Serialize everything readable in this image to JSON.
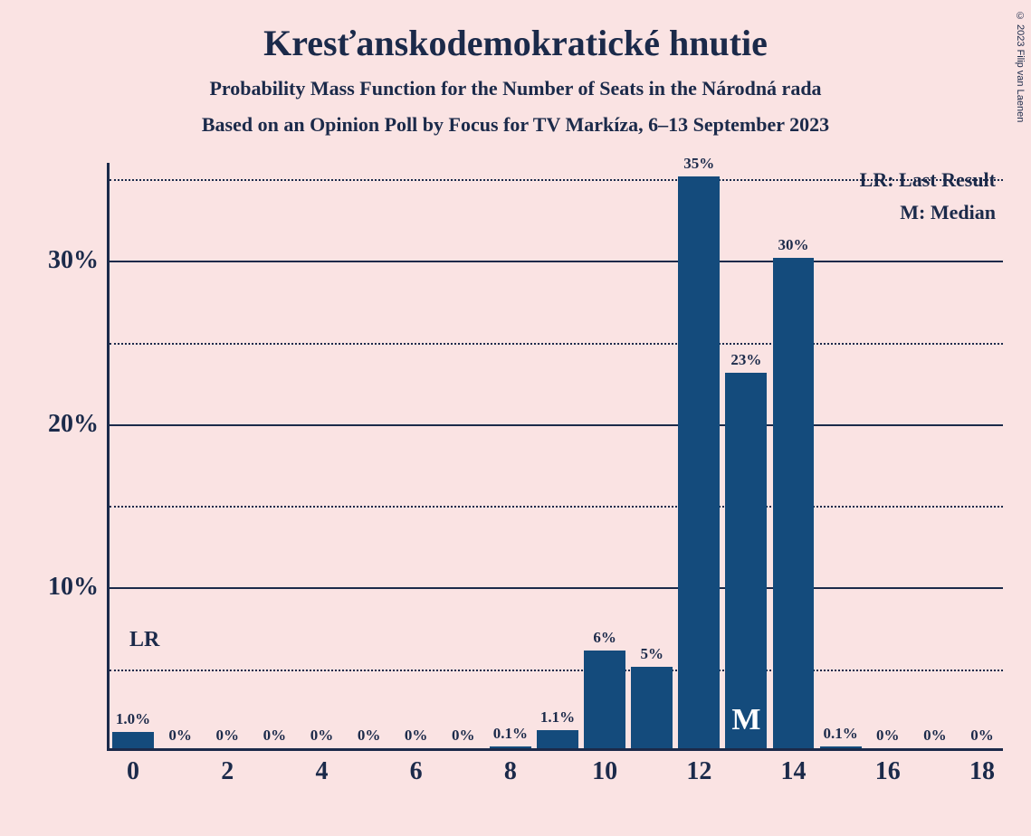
{
  "copyright": "© 2023 Filip van Laenen",
  "title": "Kresťanskodemokratické hnutie",
  "subtitle1": "Probability Mass Function for the Number of Seats in the Národná rada",
  "subtitle2": "Based on an Opinion Poll by Focus for TV Markíza, 6–13 September 2023",
  "legend": {
    "lr": "LR: Last Result",
    "m": "M: Median"
  },
  "lr_marker": "LR",
  "median_marker": "M",
  "chart": {
    "type": "bar",
    "background_color": "#fae3e3",
    "bar_color": "#144b7c",
    "text_color": "#1b2a4a",
    "border_color": "#1b2a4a",
    "grid_dotted_color": "#1b2a4a",
    "ylim": [
      0,
      36
    ],
    "y_major_ticks": [
      10,
      20,
      30
    ],
    "y_minor_ticks": [
      5,
      15,
      25,
      35
    ],
    "x_categories": [
      0,
      1,
      2,
      3,
      4,
      5,
      6,
      7,
      8,
      9,
      10,
      11,
      12,
      13,
      14,
      15,
      16,
      17,
      18
    ],
    "x_visible_ticks": [
      0,
      2,
      4,
      6,
      8,
      10,
      12,
      14,
      16,
      18
    ],
    "bar_width_ratio": 0.88,
    "values": [
      1.0,
      0,
      0,
      0,
      0,
      0,
      0,
      0,
      0.1,
      1.1,
      6,
      5,
      35,
      23,
      30,
      0.1,
      0,
      0,
      0
    ],
    "labels": [
      "1.0%",
      "0%",
      "0%",
      "0%",
      "0%",
      "0%",
      "0%",
      "0%",
      "0.1%",
      "1.1%",
      "6%",
      "5%",
      "35%",
      "23%",
      "30%",
      "0.1%",
      "0%",
      "0%",
      "0%"
    ],
    "lr_index": 0,
    "median_index": 13,
    "title_fontsize": 40,
    "subtitle_fontsize": 22,
    "axis_label_fontsize": 28,
    "bar_label_fontsize": 17,
    "legend_fontsize": 22
  }
}
